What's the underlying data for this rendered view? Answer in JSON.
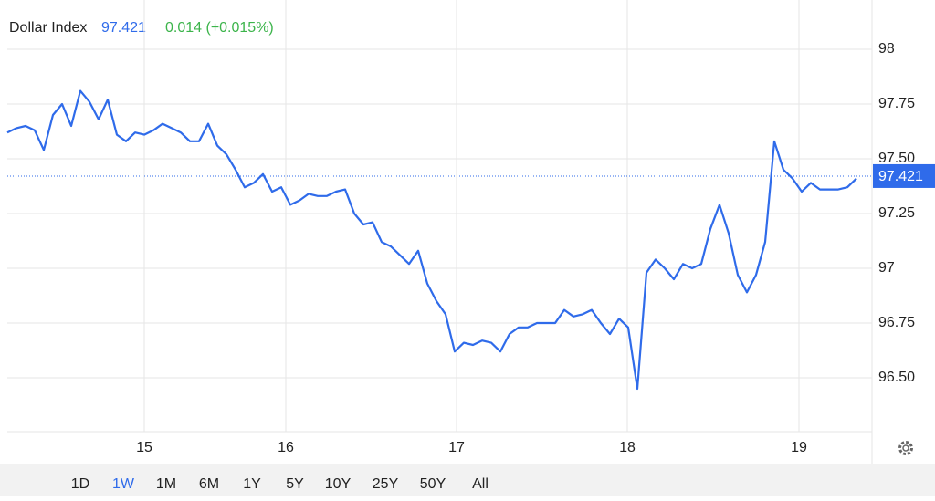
{
  "chart_data": {
    "type": "line",
    "title": "Dollar Index",
    "last_value": 97.421,
    "change": "0.014 (+0.015%)",
    "x": [
      0,
      1,
      2,
      3,
      4,
      5,
      6,
      7,
      8,
      9,
      10,
      11,
      12,
      13,
      14,
      15,
      16,
      17,
      18,
      19,
      20,
      21,
      22,
      23,
      24,
      25,
      26,
      27,
      28,
      29,
      30,
      31,
      32,
      33,
      34,
      35,
      36,
      37,
      38,
      39,
      40,
      41,
      42,
      43,
      44,
      45,
      46,
      47,
      48,
      49,
      50,
      51,
      52,
      53,
      54,
      55,
      56,
      57,
      58,
      59,
      60,
      61,
      62,
      63,
      64,
      65,
      66,
      67,
      68,
      69,
      70,
      71,
      72,
      73,
      74,
      75,
      76,
      77,
      78,
      79,
      80,
      81,
      82,
      83,
      84,
      85,
      86,
      87,
      88,
      89,
      90,
      91,
      92,
      93
    ],
    "series": [
      {
        "name": "Dollar Index",
        "color": "#2f6bea",
        "values": [
          97.62,
          97.64,
          97.65,
          97.63,
          97.54,
          97.7,
          97.75,
          97.65,
          97.81,
          97.76,
          97.68,
          97.77,
          97.61,
          97.58,
          97.62,
          97.61,
          97.63,
          97.66,
          97.64,
          97.62,
          97.58,
          97.58,
          97.66,
          97.56,
          97.52,
          97.45,
          97.37,
          97.39,
          97.43,
          97.35,
          97.37,
          97.29,
          97.31,
          97.34,
          97.33,
          97.33,
          97.35,
          97.36,
          97.25,
          97.2,
          97.21,
          97.12,
          97.1,
          97.06,
          97.02,
          97.08,
          96.93,
          96.85,
          96.79,
          96.62,
          96.66,
          96.65,
          96.67,
          96.66,
          96.62,
          96.7,
          96.73,
          96.73,
          96.75,
          96.75,
          96.75,
          96.81,
          96.78,
          96.79,
          96.81,
          96.75,
          96.7,
          96.77,
          96.73,
          96.45,
          96.98,
          97.04,
          97.0,
          96.95,
          97.02,
          97.0,
          97.02,
          97.18,
          97.29,
          97.16,
          96.97,
          96.89,
          96.97,
          97.12,
          97.58,
          97.45,
          97.41,
          97.35,
          97.39,
          97.36,
          97.36,
          97.36,
          97.37,
          97.41
        ]
      }
    ],
    "xlim": [
      0,
      95
    ],
    "xticks": [
      {
        "value": 15,
        "label": "15"
      },
      {
        "value": 30.5,
        "label": "16"
      },
      {
        "value": 49.2,
        "label": "17"
      },
      {
        "value": 67.9,
        "label": "18"
      },
      {
        "value": 86.7,
        "label": "19"
      }
    ],
    "ylim": [
      96.254,
      98.225
    ],
    "yticks": [
      98,
      97.75,
      {
        "value": 97.5,
        "label": "97.50"
      },
      97.25,
      97,
      96.75,
      {
        "value": 96.5,
        "label": "96.50"
      }
    ],
    "grid": true,
    "ranges": [
      "1D",
      "1W",
      "1M",
      "6M",
      "1Y",
      "5Y",
      "10Y",
      "25Y",
      "50Y",
      "All"
    ],
    "active_range": "1W"
  }
}
